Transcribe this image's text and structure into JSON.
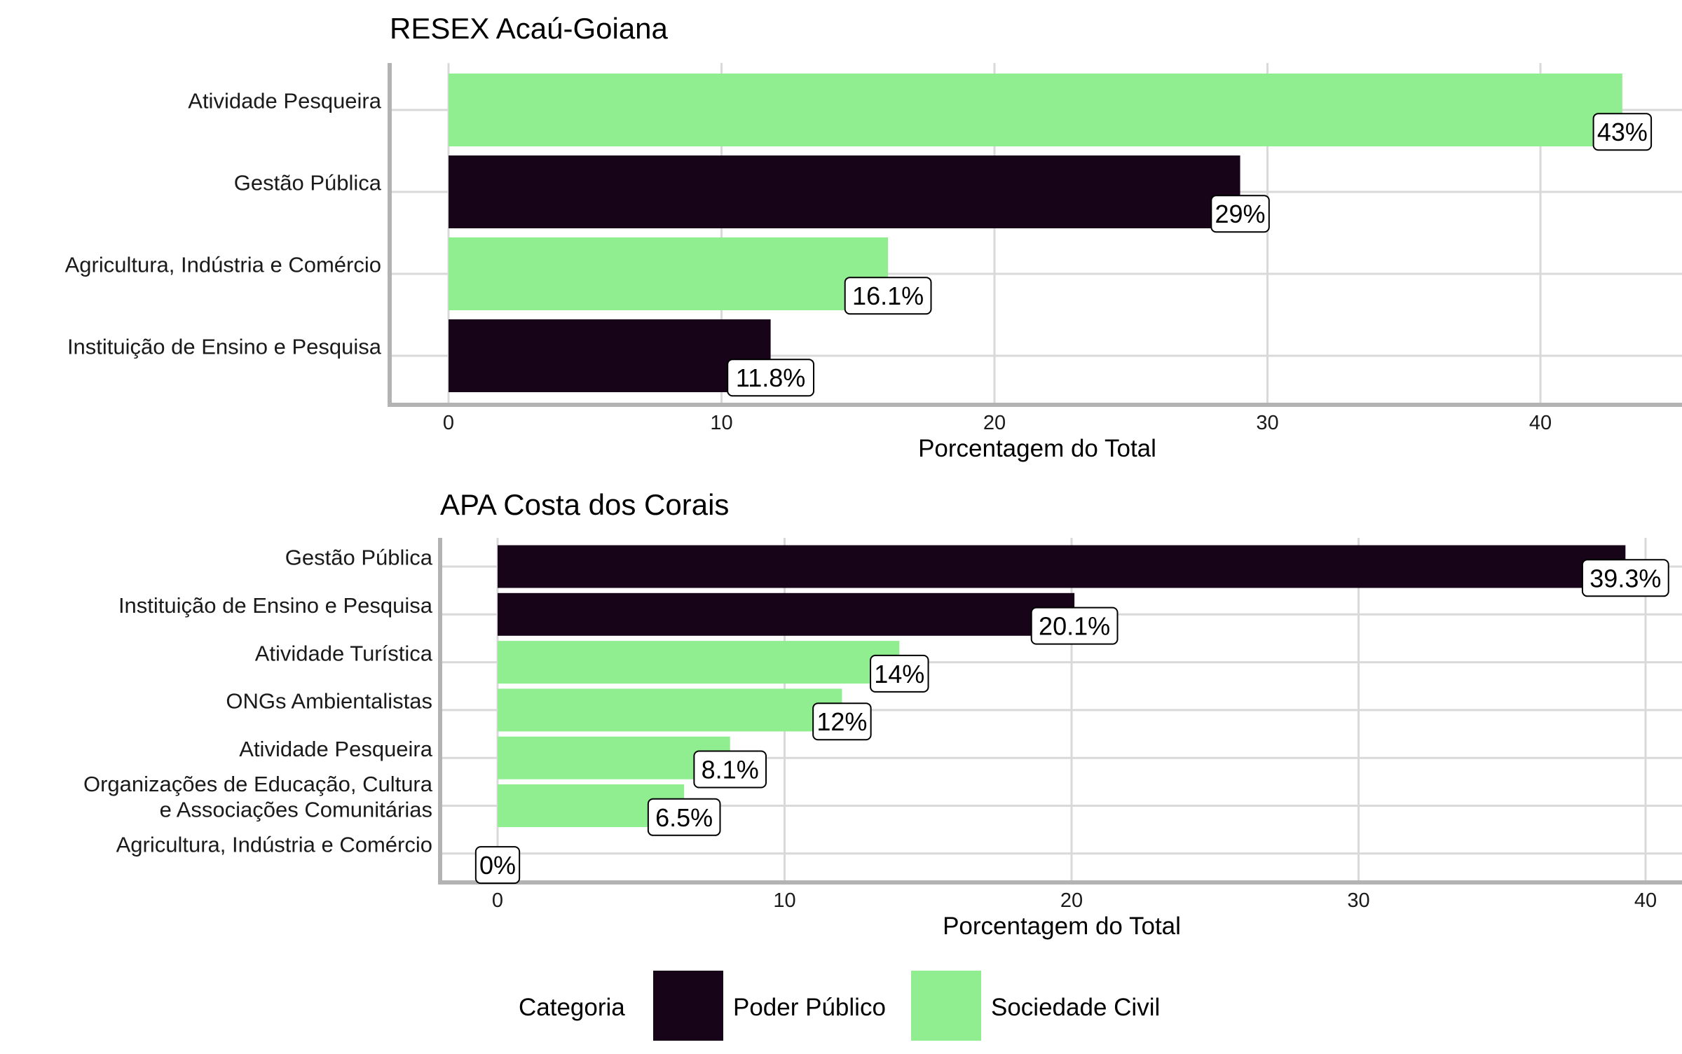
{
  "colors": {
    "poder_publico": "#170418",
    "sociedade_civil": "#90ee90",
    "grid": "#d9d9d9",
    "axis": "#b3b3b3"
  },
  "legend": {
    "title": "Categoria",
    "items": [
      {
        "label": "Poder Público",
        "color": "#170418"
      },
      {
        "label": "Sociedade Civil",
        "color": "#90ee90"
      }
    ]
  },
  "chart_data": [
    {
      "type": "bar",
      "orientation": "horizontal",
      "title": "RESEX Acaú-Goiana",
      "xlabel": "Porcentagem do Total",
      "ylabel": "",
      "xlim": [
        0,
        45
      ],
      "xticks": [
        0,
        10,
        20,
        30,
        40
      ],
      "grid": true,
      "categories": [
        "Atividade Pesqueira",
        "Gestão Pública",
        "Agricultura, Indústria e Comércio",
        "Instituição de Ensino e Pesquisa"
      ],
      "values": [
        43,
        29,
        16.1,
        11.8
      ],
      "labels": [
        "43%",
        "29%",
        "16.1%",
        "11.8%"
      ],
      "groups": [
        "Sociedade Civil",
        "Poder Público",
        "Sociedade Civil",
        "Poder Público"
      ]
    },
    {
      "type": "bar",
      "orientation": "horizontal",
      "title": "APA Costa dos Corais",
      "xlabel": "Porcentagem do Total",
      "ylabel": "",
      "xlim": [
        0,
        41
      ],
      "xticks": [
        0,
        10,
        20,
        30,
        40
      ],
      "grid": true,
      "categories": [
        "Gestão Pública",
        "Instituição de Ensino e Pesquisa",
        "Atividade Turística",
        "ONGs Ambientalistas",
        "Atividade Pesqueira",
        "Organizações de Educação, Cultura\ne Associações Comunitárias",
        "Agricultura, Indústria e Comércio"
      ],
      "values": [
        39.3,
        20.1,
        14,
        12,
        8.1,
        6.5,
        0
      ],
      "labels": [
        "39.3%",
        "20.1%",
        "14%",
        "12%",
        "8.1%",
        "6.5%",
        "0%"
      ],
      "groups": [
        "Poder Público",
        "Poder Público",
        "Sociedade Civil",
        "Sociedade Civil",
        "Sociedade Civil",
        "Sociedade Civil",
        "Sociedade Civil"
      ]
    }
  ]
}
